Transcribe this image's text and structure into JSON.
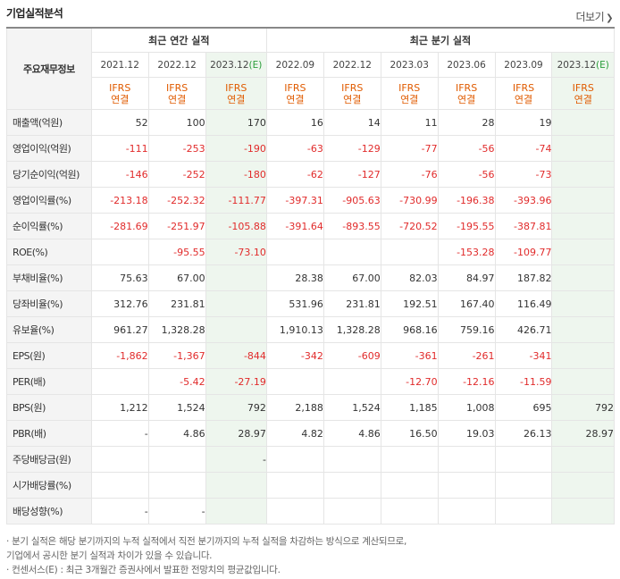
{
  "title": "기업실적분석",
  "more_label": "더보기",
  "more_icon": "chevron-right-icon",
  "header": {
    "row_label": "주요재무정보",
    "annual_title": "최근 연간 실적",
    "quarter_title": "최근 분기 실적",
    "annual_periods": [
      "2021.12",
      "2022.12",
      "2023.12"
    ],
    "annual_est_suffix": "(E)",
    "quarter_periods": [
      "2022.09",
      "2022.12",
      "2023.03",
      "2023.06",
      "2023.09",
      "2023.12"
    ],
    "quarter_est_suffix": "(E)",
    "basis_top": "IFRS",
    "basis_bottom": "연결"
  },
  "rows": [
    {
      "label": "매출액(억원)",
      "values": [
        "52",
        "100",
        "170",
        "16",
        "14",
        "11",
        "28",
        "19",
        ""
      ]
    },
    {
      "label": "영업이익(억원)",
      "values": [
        "-111",
        "-253",
        "-190",
        "-63",
        "-129",
        "-77",
        "-56",
        "-74",
        ""
      ]
    },
    {
      "label": "당기순이익(억원)",
      "values": [
        "-146",
        "-252",
        "-180",
        "-62",
        "-127",
        "-76",
        "-56",
        "-73",
        ""
      ]
    },
    {
      "label": "영업이익률(%)",
      "values": [
        "-213.18",
        "-252.32",
        "-111.77",
        "-397.31",
        "-905.63",
        "-730.99",
        "-196.38",
        "-393.96",
        ""
      ]
    },
    {
      "label": "순이익률(%)",
      "values": [
        "-281.69",
        "-251.97",
        "-105.88",
        "-391.64",
        "-893.55",
        "-720.52",
        "-195.55",
        "-387.81",
        ""
      ]
    },
    {
      "label": "ROE(%)",
      "values": [
        "",
        "-95.55",
        "-73.10",
        "",
        "",
        "",
        "-153.28",
        "-109.77",
        ""
      ]
    },
    {
      "label": "부채비율(%)",
      "values": [
        "75.63",
        "67.00",
        "",
        "28.38",
        "67.00",
        "82.03",
        "84.97",
        "187.82",
        ""
      ]
    },
    {
      "label": "당좌비율(%)",
      "values": [
        "312.76",
        "231.81",
        "",
        "531.96",
        "231.81",
        "192.51",
        "167.40",
        "116.49",
        ""
      ]
    },
    {
      "label": "유보율(%)",
      "values": [
        "961.27",
        "1,328.28",
        "",
        "1,910.13",
        "1,328.28",
        "968.16",
        "759.16",
        "426.71",
        ""
      ]
    },
    {
      "label": "EPS(원)",
      "values": [
        "-1,862",
        "-1,367",
        "-844",
        "-342",
        "-609",
        "-361",
        "-261",
        "-341",
        ""
      ]
    },
    {
      "label": "PER(배)",
      "values": [
        "",
        "-5.42",
        "-27.19",
        "",
        "",
        "-12.70",
        "-12.16",
        "-11.59",
        ""
      ]
    },
    {
      "label": "BPS(원)",
      "values": [
        "1,212",
        "1,524",
        "792",
        "2,188",
        "1,524",
        "1,185",
        "1,008",
        "695",
        "792"
      ]
    },
    {
      "label": "PBR(배)",
      "values": [
        "-",
        "4.86",
        "28.97",
        "4.82",
        "4.86",
        "16.50",
        "19.03",
        "26.13",
        "28.97"
      ]
    },
    {
      "label": "주당배당금(원)",
      "values": [
        "",
        "",
        "-",
        "",
        "",
        "",
        "",
        "",
        ""
      ]
    },
    {
      "label": "시가배당률(%)",
      "values": [
        "",
        "",
        "",
        "",
        "",
        "",
        "",
        "",
        ""
      ]
    },
    {
      "label": "배당성향(%)",
      "values": [
        "-",
        "-",
        "",
        "",
        "",
        "",
        "",
        "",
        ""
      ]
    }
  ],
  "notes": [
    "· 분기 실적은 해당 분기까지의 누적 실적에서 직전 분기까지의 누적 실적을 차감하는 방식으로 계산되므로,",
    "  기업에서 공시한 분기 실적과 차이가 있을 수 있습니다.",
    "· 컨센서스(E) : 최근 3개월간 증권사에서 발표한 전망치의 평균값입니다."
  ],
  "colors": {
    "negative": "#e12b2b",
    "basis": "#e05b00",
    "estimate_bg": "#eef6ee",
    "estimate_mark": "#2a9d3a"
  }
}
